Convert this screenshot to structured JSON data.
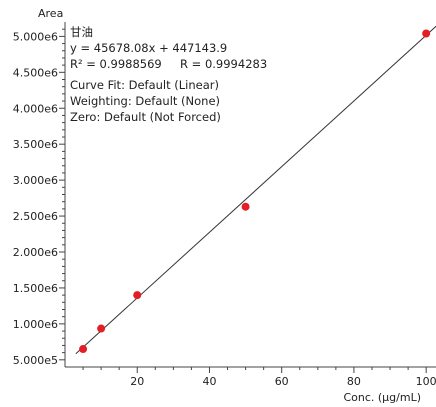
{
  "chart_data": {
    "type": "scatter",
    "ylabel": "Area",
    "xlabel": "Conc. (µg/mL)",
    "xlim": [
      0,
      103
    ],
    "ylim": [
      400000,
      5200000
    ],
    "x_ticks": [
      20,
      40,
      60,
      80,
      100
    ],
    "x_tick_labels": [
      "20",
      "40",
      "60",
      "80",
      "100"
    ],
    "y_ticks": [
      500000,
      1000000,
      1500000,
      2000000,
      2500000,
      3000000,
      3500000,
      4000000,
      4500000,
      5000000
    ],
    "y_tick_labels": [
      "5.000e5",
      "1.000e6",
      "1.500e6",
      "2.000e6",
      "2.500e6",
      "3.000e6",
      "3.500e6",
      "4.000e6",
      "4.500e6",
      "5.000e6"
    ],
    "series": [
      {
        "x": [
          5,
          10,
          20,
          50,
          100
        ],
        "y": [
          650000,
          935000,
          1400000,
          2630000,
          5040000
        ],
        "color": "#e41e25"
      }
    ],
    "fit": {
      "slope": 45678.08,
      "intercept": 447143.9,
      "color": "#333333"
    },
    "annotations": {
      "compound": "甘油",
      "equation": "y = 45678.08x + 447143.9",
      "r_values": "R² = 0.9988569     R = 0.9994283",
      "curve_fit": "Curve Fit: Default (Linear)",
      "weighting": "Weighting: Default (None)",
      "zero": "Zero: Default (Not Forced)"
    },
    "grid": false
  }
}
